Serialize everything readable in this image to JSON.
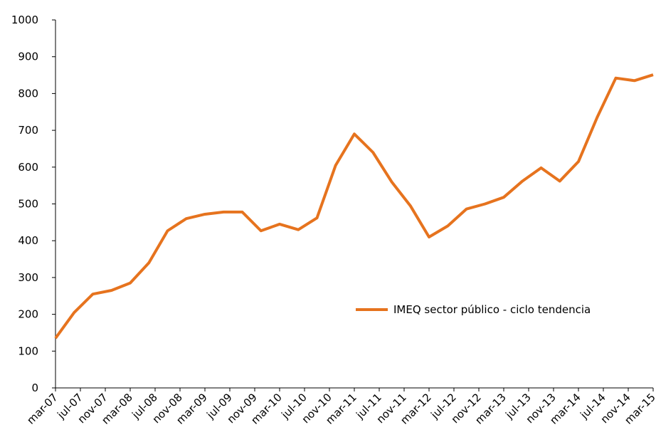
{
  "chart_data": {
    "type": "line",
    "categories": [
      "mar-07",
      "jul-07",
      "nov-07",
      "mar-08",
      "jul-08",
      "nov-08",
      "mar-09",
      "jul-09",
      "nov-09",
      "mar-10",
      "jul-10",
      "nov-10",
      "mar-11",
      "jul-11",
      "nov-11",
      "mar-12",
      "jul-12",
      "nov-12",
      "mar-13",
      "jul-13",
      "nov-13",
      "mar-14",
      "jul-14",
      "nov-14",
      "mar-15"
    ],
    "x": [
      0,
      0.75,
      1.5,
      2.25,
      3,
      3.75,
      4.5,
      5.25,
      6,
      6.75,
      7.5,
      8.25,
      9,
      9.75,
      10.5,
      11.25,
      12,
      12.75,
      13.5,
      14.25,
      15,
      15.75,
      16.5,
      17.25,
      18,
      18.75,
      19.5,
      20.25,
      21,
      21.75,
      22.5,
      23.25,
      24
    ],
    "series": [
      {
        "name": "IMEQ sector público - ciclo tendencia",
        "color": "#e6731e",
        "values": [
          135,
          205,
          255,
          265,
          285,
          340,
          427,
          460,
          472,
          478,
          478,
          427,
          445,
          430,
          462,
          605,
          690,
          640,
          560,
          495,
          410,
          440,
          486,
          500,
          518,
          562,
          598,
          562,
          615,
          735,
          842,
          835,
          851
        ]
      }
    ],
    "ylim": [
      0,
      1000
    ],
    "yticks": [
      0,
      100,
      200,
      300,
      400,
      500,
      600,
      700,
      800,
      900,
      1000
    ]
  }
}
